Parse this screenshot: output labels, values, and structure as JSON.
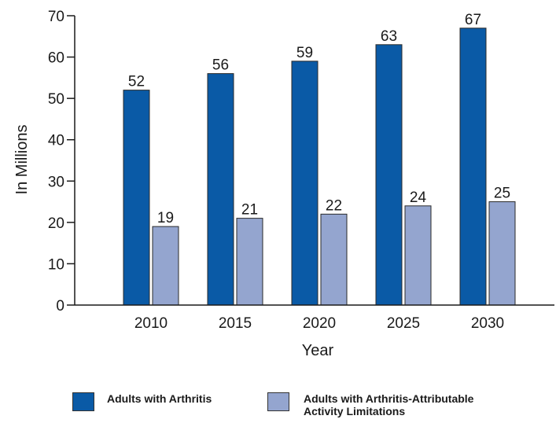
{
  "chart_data": {
    "type": "bar",
    "categories": [
      "2010",
      "2015",
      "2020",
      "2025",
      "2030"
    ],
    "series": [
      {
        "name": "Adults with Arthritis",
        "values": [
          52,
          56,
          59,
          63,
          67
        ],
        "color": "#0a5aa6"
      },
      {
        "name": "Adults with Arthritis-Attributable\nActivity Limitations",
        "values": [
          19,
          21,
          22,
          24,
          25
        ],
        "color": "#94a5cf"
      }
    ],
    "xlabel": "Year",
    "ylabel": "In Millions",
    "ylim": [
      0,
      70
    ],
    "yticks": [
      0,
      10,
      20,
      30,
      40,
      50,
      60,
      70
    ],
    "grid": false,
    "legend_position": "bottom"
  }
}
